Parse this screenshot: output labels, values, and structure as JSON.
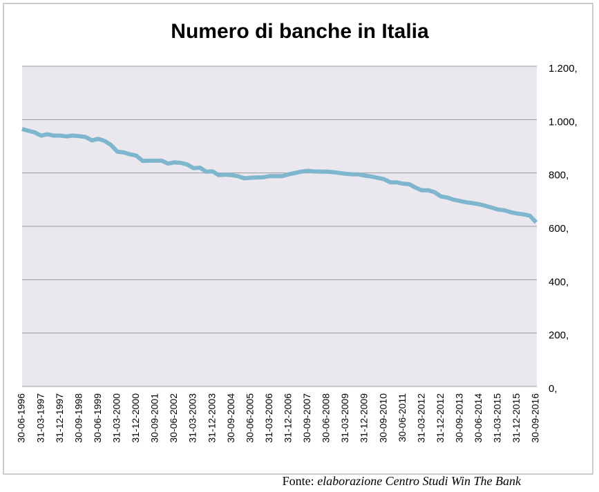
{
  "chart_data": {
    "type": "line",
    "title": "Numero di banche in Italia",
    "categories": [
      "30-06-1996",
      null,
      null,
      "31-03-1997",
      null,
      null,
      "31-12-1997",
      null,
      null,
      "30-09-1998",
      null,
      null,
      "30-06-1999",
      null,
      null,
      "31-03-2000",
      null,
      null,
      "31-12-2000",
      null,
      null,
      "30-09-2001",
      null,
      null,
      "30-06-2002",
      null,
      null,
      "31-03-2003",
      null,
      null,
      "31-12-2003",
      null,
      null,
      "30-09-2004",
      null,
      null,
      "30-06-2005",
      null,
      null,
      "31-03-2006",
      null,
      null,
      "31-12-2006",
      null,
      null,
      "30-09-2007",
      null,
      null,
      "30-06-2008",
      null,
      null,
      "31-03-2009",
      null,
      null,
      "31-12-2009",
      null,
      null,
      "30-09-2010",
      null,
      null,
      "30-06-2011",
      null,
      null,
      "31-03-2012",
      null,
      null,
      "31-12-2012",
      null,
      null,
      "30-09-2013",
      null,
      null,
      "30-06-2014",
      null,
      null,
      "31-03-2015",
      null,
      null,
      "31-12-2015",
      null,
      null,
      "30-09-2016"
    ],
    "series": [
      {
        "color": "#7db6cd",
        "values": [
          965,
          958,
          952,
          940,
          945,
          940,
          940,
          937,
          940,
          938,
          935,
          922,
          928,
          920,
          905,
          880,
          877,
          870,
          865,
          845,
          846,
          846,
          846,
          835,
          840,
          838,
          832,
          818,
          820,
          805,
          806,
          792,
          794,
          792,
          788,
          780,
          782,
          783,
          784,
          788,
          788,
          788,
          795,
          800,
          805,
          808,
          806,
          805,
          805,
          803,
          800,
          797,
          795,
          795,
          790,
          787,
          782,
          777,
          765,
          765,
          760,
          758,
          745,
          735,
          735,
          728,
          712,
          708,
          700,
          695,
          690,
          687,
          683,
          677,
          670,
          663,
          660,
          653,
          648,
          645,
          640,
          615
        ]
      }
    ],
    "ylim": [
      0,
      1200
    ],
    "yticks": [
      {
        "value": 0,
        "label": "0,"
      },
      {
        "value": 200,
        "label": "200,"
      },
      {
        "value": 400,
        "label": "400,"
      },
      {
        "value": 600,
        "label": "600,"
      },
      {
        "value": 800,
        "label": "800,"
      },
      {
        "value": 1000,
        "label": "1.000,"
      },
      {
        "value": 1200,
        "label": "1.200,"
      }
    ],
    "grid": true,
    "source_prefix": "Fonte:",
    "source": "elaborazione Centro Studi Win The Bank"
  }
}
